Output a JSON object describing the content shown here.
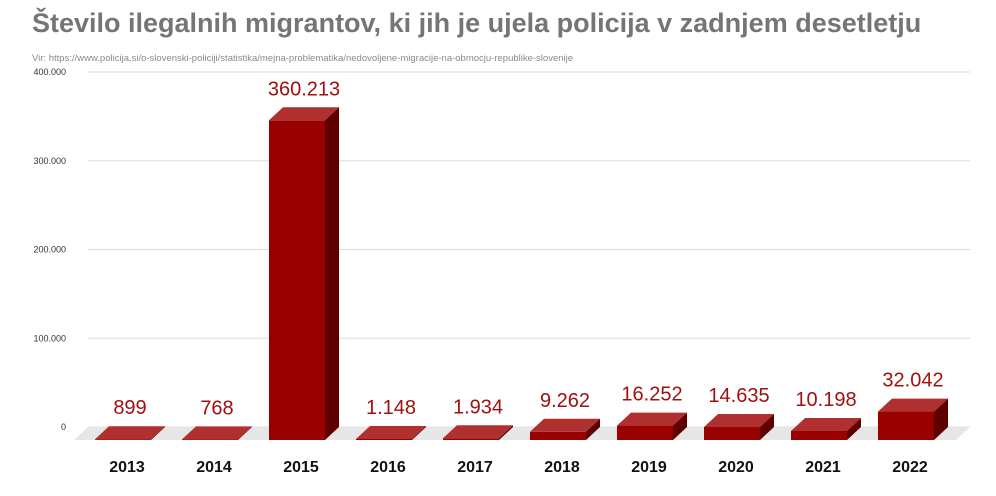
{
  "title": "Število ilegalnih migrantov, ki jih je ujela policija v zadnjem desetletju",
  "source": "Vir: https://www.policija.si/o-slovenski-policiji/statistika/mejna-problematika/nedovoljene-migracije-na-obmocju-republike-slovenije",
  "colors": {
    "bar_front": "#990000",
    "bar_top": "#b03030",
    "bar_side": "#5e0000",
    "label": "#a01010",
    "grid": "#dddddd",
    "floor": "#e6e6e6"
  },
  "chart_data": {
    "type": "bar",
    "categories": [
      "2013",
      "2014",
      "2015",
      "2016",
      "2017",
      "2018",
      "2019",
      "2020",
      "2021",
      "2022"
    ],
    "values": [
      899,
      768,
      360213,
      1148,
      1934,
      9262,
      16252,
      14635,
      10198,
      32042
    ],
    "value_labels": [
      "899",
      "768",
      "360.213",
      "1.148",
      "1.934",
      "9.262",
      "16.252",
      "14.635",
      "10.198",
      "32.042"
    ],
    "ylim": [
      0,
      400000
    ],
    "y_ticks": [
      0,
      100000,
      200000,
      300000,
      400000
    ],
    "y_tick_labels": [
      "0",
      "100.000",
      "200.000",
      "300.000",
      "400.000"
    ],
    "grid": true,
    "style": "3d"
  }
}
